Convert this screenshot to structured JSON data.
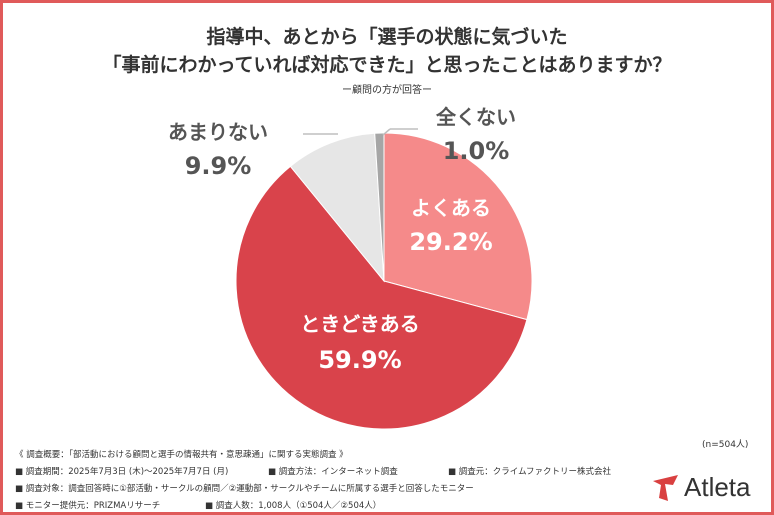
{
  "colors": {
    "frame": "#e05a5a",
    "slice_yoku": "#f58a8a",
    "slice_tokidoki": "#d9434b",
    "slice_amari": "#e6e6e6",
    "slice_mattaku": "#a6a6a6",
    "logo_red": "#d94040"
  },
  "title": {
    "line1": "指導中、あとから「選手の状態に気づいた",
    "line2": "「事前にわかっていれば対応できた」と思ったことはありますか？",
    "subtitle": "ー顧問の方が回答ー"
  },
  "chart_data": {
    "type": "pie",
    "start_angle_deg": 0,
    "direction": "clockwise",
    "slices": [
      {
        "label": "よくある",
        "value": 29.2,
        "display": "29.2%",
        "color": "#f58a8a",
        "label_position": "inside"
      },
      {
        "label": "ときどきある",
        "value": 59.9,
        "display": "59.9%",
        "color": "#d9434b",
        "label_position": "inside"
      },
      {
        "label": "あまりない",
        "value": 9.9,
        "display": "9.9%",
        "color": "#e6e6e6",
        "label_position": "outside"
      },
      {
        "label": "全くない",
        "value": 1.0,
        "display": "1.0%",
        "color": "#a6a6a6",
        "label_position": "outside"
      }
    ]
  },
  "sample": "(n=504人)",
  "survey": {
    "line1": "《 調査概要：「部活動における顧問と選手の情報共有・意思疎通」に関する実態調査 》",
    "period": "■ 調査期間：2025年7月3日 (木)〜2025年7月7日 (月)",
    "method": "■ 調査方法：インターネット調査",
    "source": "■ 調査元：クライムファクトリー株式会社",
    "target": "■ 調査対象：調査回答時に①部活動・サークルの顧問／②運動部・サークルやチームに所属する選手と回答したモニター",
    "monitor": "■ モニター提供元：PRIZMAリサーチ",
    "count": "■ 調査人数：1,008人（①504人／②504人）"
  },
  "logo": {
    "text": "Atleta"
  }
}
